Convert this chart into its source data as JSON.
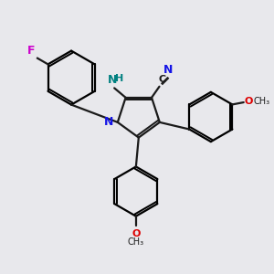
{
  "background_color": "#e8e8ec",
  "bond_color": "#1a1a1a",
  "N_color": "#1414e6",
  "NH_color": "#008080",
  "F_color": "#cc00cc",
  "O_color": "#dd0000",
  "figsize": [
    3.0,
    3.0
  ],
  "dpi": 100,
  "xlim": [
    0,
    10
  ],
  "ylim": [
    0,
    10
  ]
}
